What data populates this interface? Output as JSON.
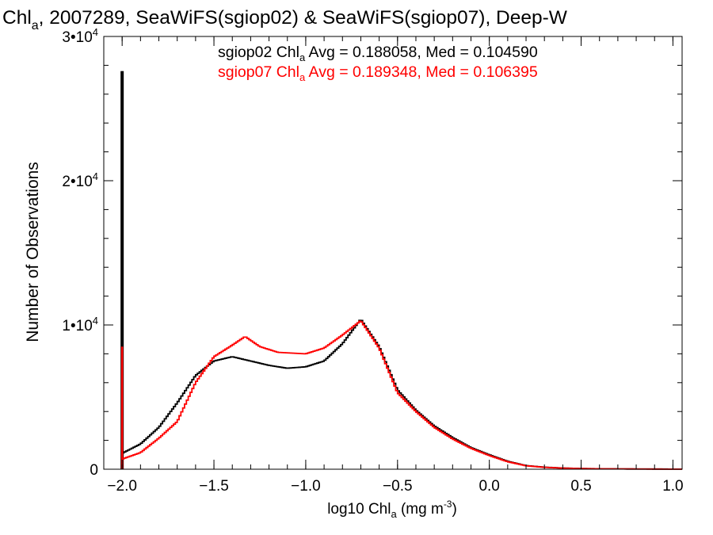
{
  "chart_data": {
    "type": "histogram-step",
    "title": {
      "pre": "Chl",
      "sub": "a",
      "post": ", 2007289, SeaWiFS(sgiop02) & SeaWiFS(sgiop07), Deep-W"
    },
    "xlabel": {
      "pre": "log10 Chl",
      "sub": "a",
      "post": " (mg m",
      "sup": "-3",
      "close": ")"
    },
    "ylabel": "Number of Observations",
    "xlim": [
      -2.1,
      1.05
    ],
    "ylim": [
      0,
      30000
    ],
    "x_ticks": [
      {
        "value": -2.0,
        "label": "−2.0"
      },
      {
        "value": -1.5,
        "label": "−1.5"
      },
      {
        "value": -1.0,
        "label": "−1.0"
      },
      {
        "value": -0.5,
        "label": "−0.5"
      },
      {
        "value": 0.0,
        "label": "0.0"
      },
      {
        "value": 0.5,
        "label": "0.5"
      },
      {
        "value": 1.0,
        "label": "1.0"
      }
    ],
    "y_ticks": [
      {
        "value": 0,
        "label": "0",
        "exp": ""
      },
      {
        "value": 10000,
        "label": "1•10",
        "exp": "4"
      },
      {
        "value": 20000,
        "label": "2•10",
        "exp": "4"
      },
      {
        "value": 30000,
        "label": "3•10",
        "exp": "4"
      }
    ],
    "x_minor_step": 0.1,
    "y_minor_step": 2000,
    "grid": false,
    "series": [
      {
        "name": "sgiop02",
        "color": "#000000",
        "spike": {
          "x": -2.0,
          "value": 27600
        },
        "stats": {
          "pre": "sgiop02 Chl",
          "sub": "a",
          "post": " Avg = 0.188058, Med = 0.104590"
        },
        "points": [
          [
            -2.0,
            1100
          ],
          [
            -1.9,
            1750
          ],
          [
            -1.8,
            2900
          ],
          [
            -1.7,
            4600
          ],
          [
            -1.6,
            6500
          ],
          [
            -1.5,
            7500
          ],
          [
            -1.4,
            7800
          ],
          [
            -1.3,
            7500
          ],
          [
            -1.2,
            7200
          ],
          [
            -1.1,
            7000
          ],
          [
            -1.0,
            7100
          ],
          [
            -0.9,
            7500
          ],
          [
            -0.8,
            8700
          ],
          [
            -0.7,
            10400
          ],
          [
            -0.6,
            8500
          ],
          [
            -0.5,
            5500
          ],
          [
            -0.4,
            4100
          ],
          [
            -0.3,
            3000
          ],
          [
            -0.2,
            2200
          ],
          [
            -0.1,
            1500
          ],
          [
            0.0,
            1000
          ],
          [
            0.1,
            550
          ],
          [
            0.2,
            250
          ],
          [
            0.3,
            140
          ],
          [
            0.4,
            80
          ],
          [
            0.5,
            50
          ],
          [
            0.6,
            30
          ],
          [
            0.8,
            15
          ],
          [
            1.0,
            8
          ],
          [
            1.05,
            5
          ]
        ]
      },
      {
        "name": "sgiop07",
        "color": "#ff0000",
        "spike": {
          "x": -2.0,
          "value": 8500
        },
        "stats": {
          "pre": "sgiop07 Chl",
          "sub": "a",
          "post": " Avg = 0.189348, Med = 0.106395"
        },
        "points": [
          [
            -2.0,
            700
          ],
          [
            -1.9,
            1150
          ],
          [
            -1.8,
            2150
          ],
          [
            -1.7,
            3300
          ],
          [
            -1.6,
            6000
          ],
          [
            -1.5,
            7800
          ],
          [
            -1.4,
            8600
          ],
          [
            -1.33,
            9200
          ],
          [
            -1.25,
            8500
          ],
          [
            -1.15,
            8100
          ],
          [
            -1.0,
            8000
          ],
          [
            -0.9,
            8400
          ],
          [
            -0.8,
            9300
          ],
          [
            -0.7,
            10300
          ],
          [
            -0.6,
            8400
          ],
          [
            -0.5,
            5300
          ],
          [
            -0.4,
            4000
          ],
          [
            -0.3,
            2900
          ],
          [
            -0.2,
            2100
          ],
          [
            -0.1,
            1450
          ],
          [
            0.0,
            950
          ],
          [
            0.1,
            520
          ],
          [
            0.2,
            240
          ],
          [
            0.3,
            130
          ],
          [
            0.4,
            75
          ],
          [
            0.5,
            45
          ],
          [
            0.6,
            28
          ],
          [
            0.8,
            14
          ],
          [
            1.0,
            7
          ],
          [
            1.05,
            5
          ]
        ]
      }
    ]
  }
}
